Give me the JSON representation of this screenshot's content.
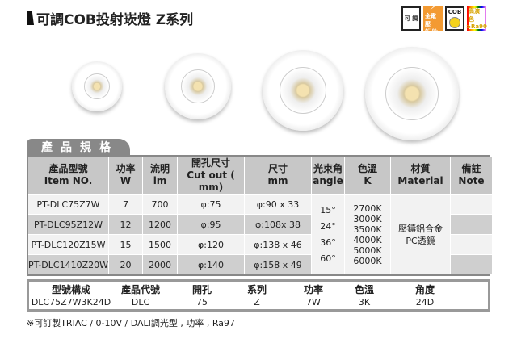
{
  "title": "可調COB投射崁燈 Z系列",
  "badges": [
    {
      "icon": "dimmable-badge",
      "label": "可 調"
    },
    {
      "icon": "full-voltage-badge",
      "label": "全電壓",
      "sub": "AC100-240V"
    },
    {
      "icon": "cob-badge",
      "label": "COB"
    },
    {
      "icon": "high-cri-badge",
      "label": "高演色",
      "sub": "≥Ra90"
    }
  ],
  "section_tab": "產品規格",
  "spec_table": {
    "headers": [
      [
        "產品型號",
        "Item NO."
      ],
      [
        "功率",
        "W"
      ],
      [
        "流明",
        "lm"
      ],
      [
        "開孔尺寸",
        "Cut out ( mm)"
      ],
      [
        "尺寸",
        "mm"
      ],
      [
        "光束角",
        "angle"
      ],
      [
        "色溫",
        "K"
      ],
      [
        "材質",
        "Material"
      ],
      [
        "備註",
        "Note"
      ]
    ],
    "rows": [
      [
        "PT-DLC75Z7W",
        "7",
        "700",
        "φ:75",
        "φ:90 x 33"
      ],
      [
        "PT-DLC95Z12W",
        "12",
        "1200",
        "φ:95",
        "φ:108x 38"
      ],
      [
        "PT-DLC120Z15W",
        "15",
        "1500",
        "φ:120",
        "φ:138 x 46"
      ],
      [
        "PT-DLC1410Z20W",
        "20",
        "2000",
        "φ:140",
        "φ:158 x 49"
      ]
    ],
    "angles": [
      "15°",
      "24°",
      "36°",
      "60°"
    ],
    "color_temps": [
      "2700K",
      "3000K",
      "3500K",
      "4000K",
      "5000K",
      "6000K"
    ],
    "material": [
      "壓鑄鋁合金",
      "PC透鏡"
    ],
    "note": ""
  },
  "model_code": {
    "columns": [
      {
        "label": "型號構成",
        "value": "DLC75Z7W3K24D"
      },
      {
        "label": "產品代號",
        "value": "DLC"
      },
      {
        "label": "開孔",
        "value": "75"
      },
      {
        "label": "系列",
        "value": "Z"
      },
      {
        "label": "功率",
        "value": "7W"
      },
      {
        "label": "色溫",
        "value": "3K"
      },
      {
        "label": "角度",
        "value": "24D"
      }
    ]
  },
  "footnote": "※可訂製TRIAC / 0-10V / DALI調光型 , 功率 , Ra97"
}
